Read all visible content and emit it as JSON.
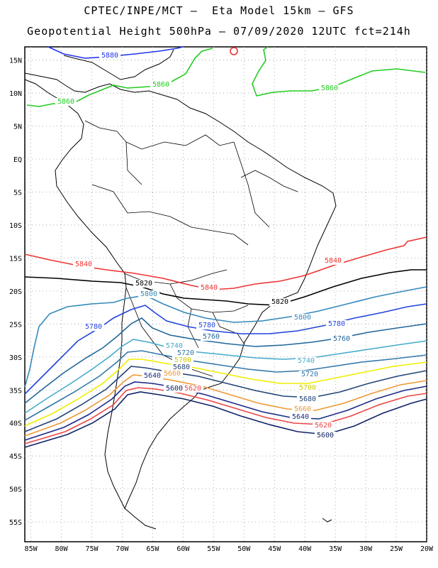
{
  "header": {
    "title_line1": "CPTEC/INPE/MCT –  Eta Model 15km – GFS",
    "title_line2": "Geopotential Height 500hPa – 07/09/2020 12UTC fct=214h"
  },
  "axes": {
    "lat_labels": [
      "15N",
      "10N",
      "5N",
      "EQ",
      "5S",
      "10S",
      "15S",
      "20S",
      "25S",
      "30S",
      "35S",
      "40S",
      "45S",
      "50S",
      "55S"
    ],
    "lat_values": [
      15,
      10,
      5,
      0,
      -5,
      -10,
      -15,
      -20,
      -25,
      -30,
      -35,
      -40,
      -45,
      -50,
      -55
    ],
    "lon_labels": [
      "85W",
      "80W",
      "75W",
      "70W",
      "65W",
      "60W",
      "55W",
      "50W",
      "45W",
      "40W",
      "35W",
      "30W",
      "25W",
      "20W"
    ],
    "lon_values": [
      -85,
      -80,
      -75,
      -70,
      -65,
      -60,
      -55,
      -50,
      -45,
      -40,
      -35,
      -30,
      -25,
      -20
    ],
    "lon_range": [
      -86,
      -20
    ],
    "lat_range": [
      -58,
      17
    ],
    "grid": "dotted"
  },
  "contours": [
    {
      "level": "5880",
      "color": "#2233ee"
    },
    {
      "level": "5860",
      "color": "#22cc22"
    },
    {
      "level": "5840",
      "color": "#ee3333"
    },
    {
      "level": "5820",
      "color": "#000000"
    },
    {
      "level": "5800",
      "color": "#3388bb"
    },
    {
      "level": "5780",
      "color": "#2244dd"
    },
    {
      "level": "5760",
      "color": "#226699"
    },
    {
      "level": "5740",
      "color": "#44aacc"
    },
    {
      "level": "5720",
      "color": "#3377aa"
    },
    {
      "level": "5700",
      "color": "#eeee00"
    },
    {
      "level": "5680",
      "color": "#224477"
    },
    {
      "level": "5660",
      "color": "#ee9933"
    },
    {
      "level": "5640",
      "color": "#1a2a88"
    },
    {
      "level": "5620",
      "color": "#ee4444"
    },
    {
      "level": "5600",
      "color": "#112266"
    }
  ]
}
